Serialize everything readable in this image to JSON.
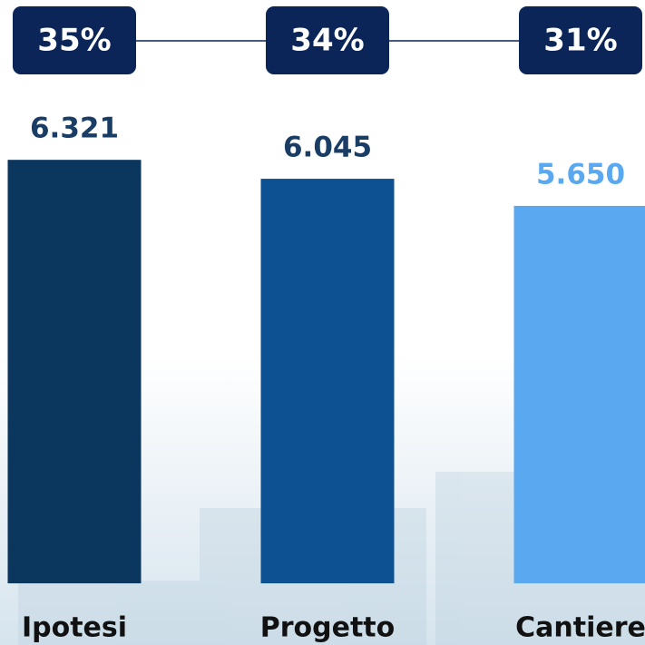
{
  "chart_data": {
    "type": "bar",
    "categories": [
      "Ipotesi",
      "Progetto",
      "Cantiere"
    ],
    "values": [
      6321,
      6045,
      5650
    ],
    "value_labels": [
      "6.321",
      "6.045",
      "5.650"
    ],
    "colors": [
      "#0b365e",
      "#0e5192",
      "#5aa9f0"
    ],
    "label_colors": [
      "#1a3d66",
      "#1a3d66",
      "#5aa9f0"
    ],
    "share": {
      "values": [
        35,
        34,
        31
      ],
      "value_labels": [
        "35%",
        "34%",
        "31%"
      ],
      "color": "#0b2559"
    },
    "ylim": [
      150,
      8650
    ]
  }
}
